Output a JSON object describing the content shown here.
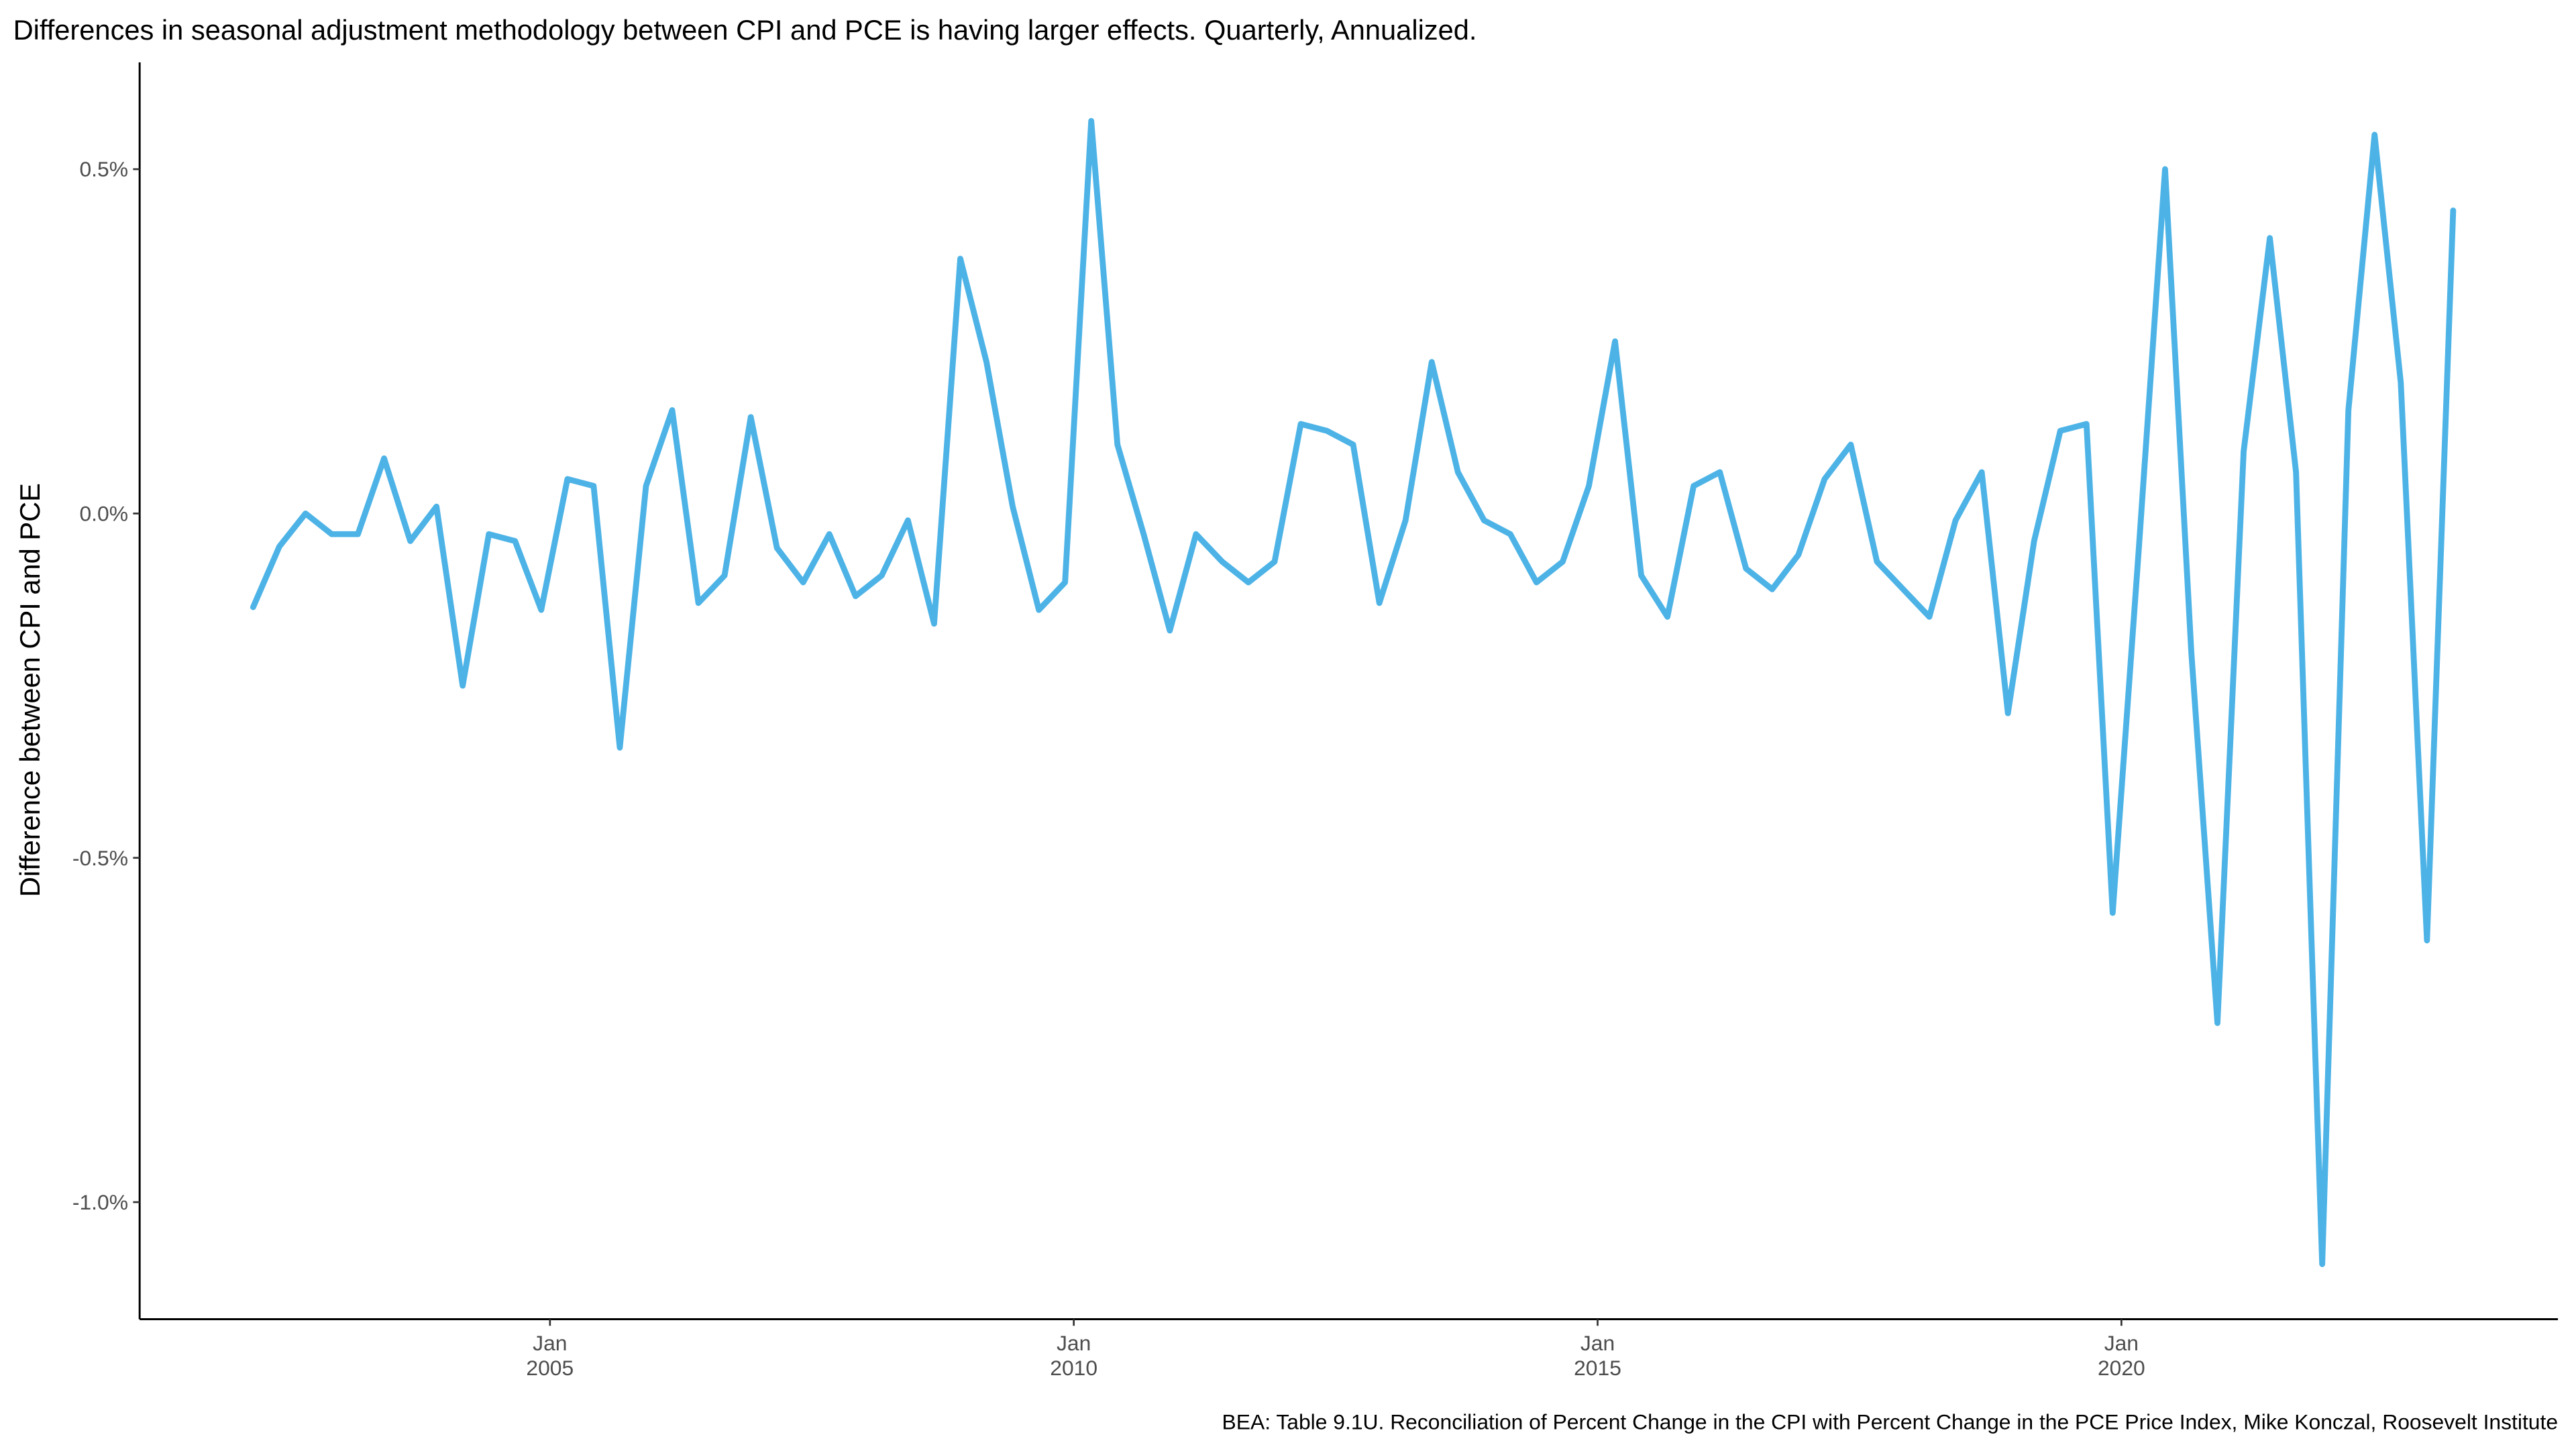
{
  "chart_data": {
    "type": "line",
    "title": "Differences in seasonal adjustment methodology between CPI and PCE is having larger effects. Quarterly, Annualized.",
    "y_label": "Difference between CPI and PCE",
    "caption": "BEA: Table 9.1U. Reconciliation of Percent Change in the CPI with Percent Change in the PCE Price Index, Mike Konczal, Roosevelt Institute",
    "color": "#4db3e6",
    "x": [
      "2002-03",
      "2002-06",
      "2002-09",
      "2002-12",
      "2003-03",
      "2003-06",
      "2003-09",
      "2003-12",
      "2004-03",
      "2004-06",
      "2004-09",
      "2004-12",
      "2005-03",
      "2005-06",
      "2005-09",
      "2005-12",
      "2006-03",
      "2006-06",
      "2006-09",
      "2006-12",
      "2007-03",
      "2007-06",
      "2007-09",
      "2007-12",
      "2008-03",
      "2008-06",
      "2008-09",
      "2008-12",
      "2009-03",
      "2009-06",
      "2009-09",
      "2009-12",
      "2010-03",
      "2010-06",
      "2010-09",
      "2010-12",
      "2011-03",
      "2011-06",
      "2011-09",
      "2011-12",
      "2012-03",
      "2012-06",
      "2012-09",
      "2012-12",
      "2013-03",
      "2013-06",
      "2013-09",
      "2013-12",
      "2014-03",
      "2014-06",
      "2014-09",
      "2014-12",
      "2015-03",
      "2015-06",
      "2015-09",
      "2015-12",
      "2016-03",
      "2016-06",
      "2016-09",
      "2016-12",
      "2017-03",
      "2017-06",
      "2017-09",
      "2017-12",
      "2018-03",
      "2018-06",
      "2018-09",
      "2018-12",
      "2019-03",
      "2019-06",
      "2019-09",
      "2019-12",
      "2020-03",
      "2020-06",
      "2020-09",
      "2020-12",
      "2021-03",
      "2021-06",
      "2021-09",
      "2021-12",
      "2022-03",
      "2022-06",
      "2022-09",
      "2022-12",
      "2023-03"
    ],
    "values": [
      -0.136,
      -0.048,
      0.0,
      -0.03,
      -0.03,
      0.08,
      -0.04,
      0.01,
      -0.25,
      -0.03,
      -0.04,
      -0.14,
      0.05,
      0.04,
      -0.34,
      0.04,
      0.15,
      -0.13,
      -0.09,
      0.14,
      -0.05,
      -0.1,
      -0.03,
      -0.12,
      -0.09,
      -0.01,
      -0.16,
      0.37,
      0.22,
      0.01,
      -0.14,
      -0.1,
      0.57,
      0.1,
      -0.03,
      -0.17,
      -0.03,
      -0.07,
      -0.1,
      -0.07,
      0.13,
      0.12,
      0.1,
      -0.13,
      -0.01,
      0.22,
      0.06,
      -0.01,
      -0.03,
      -0.1,
      -0.07,
      0.04,
      0.25,
      -0.09,
      -0.15,
      0.04,
      0.06,
      -0.08,
      -0.11,
      -0.06,
      0.05,
      0.1,
      -0.07,
      -0.11,
      -0.15,
      -0.01,
      0.06,
      -0.29,
      -0.04,
      0.12,
      0.13,
      -0.58,
      -0.05,
      0.5,
      -0.2,
      -0.74,
      0.09,
      0.4,
      0.06,
      -1.09,
      0.15,
      0.55,
      0.19,
      -0.62,
      0.44
    ],
    "xlim": [
      "2001-02",
      "2024-03"
    ],
    "xticks": [
      {
        "value": "2005-01",
        "label": "Jan\n2005"
      },
      {
        "value": "2010-01",
        "label": "Jan\n2010"
      },
      {
        "value": "2015-01",
        "label": "Jan\n2015"
      },
      {
        "value": "2020-01",
        "label": "Jan\n2020"
      }
    ],
    "ylim": [
      -1.17,
      0.655
    ],
    "yticks": [
      {
        "value": -1.0,
        "label": "-1.0%"
      },
      {
        "value": -0.5,
        "label": "-0.5%"
      },
      {
        "value": 0.0,
        "label": "0.0%"
      },
      {
        "value": 0.5,
        "label": "0.5%"
      }
    ],
    "grid": false
  }
}
